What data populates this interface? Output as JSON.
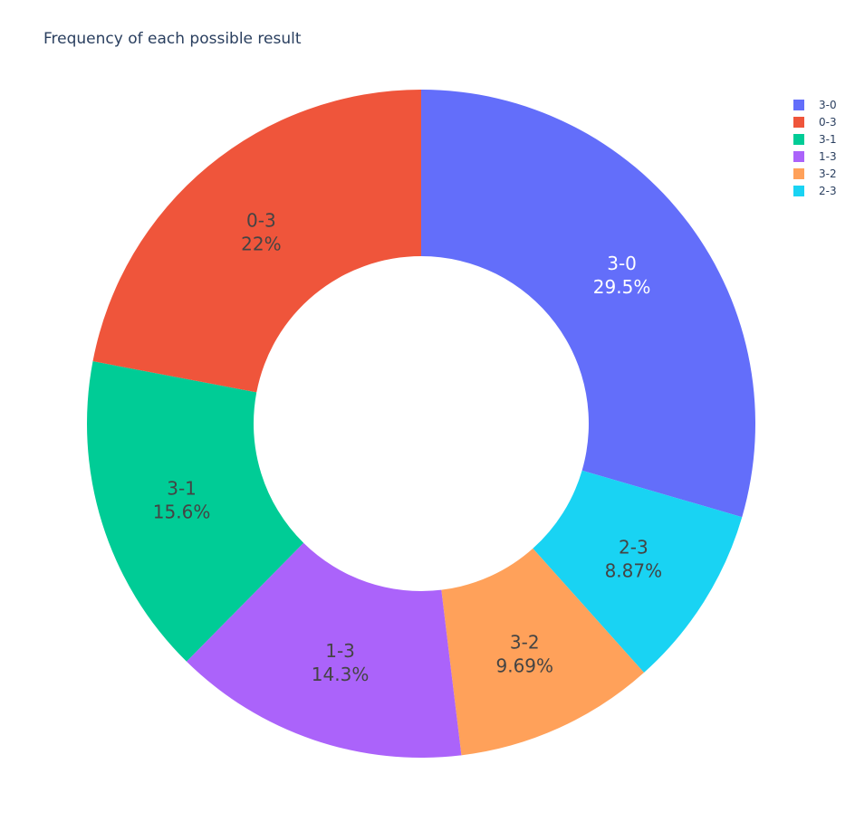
{
  "chart_data": {
    "type": "pie",
    "hole": true,
    "title": "Frequency of each possible result",
    "legend_position": "top-right",
    "slices": [
      {
        "label": "3-0",
        "percent": 29.5,
        "percent_text": "29.5%",
        "color": "#636efa",
        "text_color": "#ffffff"
      },
      {
        "label": "2-3",
        "percent": 8.87,
        "percent_text": "8.87%",
        "color": "#19d3f3",
        "text_color": "#444444"
      },
      {
        "label": "3-2",
        "percent": 9.69,
        "percent_text": "9.69%",
        "color": "#ffa15a",
        "text_color": "#444444"
      },
      {
        "label": "1-3",
        "percent": 14.3,
        "percent_text": "14.3%",
        "color": "#ab63fa",
        "text_color": "#444444"
      },
      {
        "label": "3-1",
        "percent": 15.6,
        "percent_text": "15.6%",
        "color": "#00cc96",
        "text_color": "#444444"
      },
      {
        "label": "0-3",
        "percent": 22.0,
        "percent_text": "22%",
        "color": "#ef553b",
        "text_color": "#444444"
      }
    ],
    "legend_order": [
      "3-0",
      "0-3",
      "3-1",
      "1-3",
      "3-2",
      "2-3"
    ]
  }
}
